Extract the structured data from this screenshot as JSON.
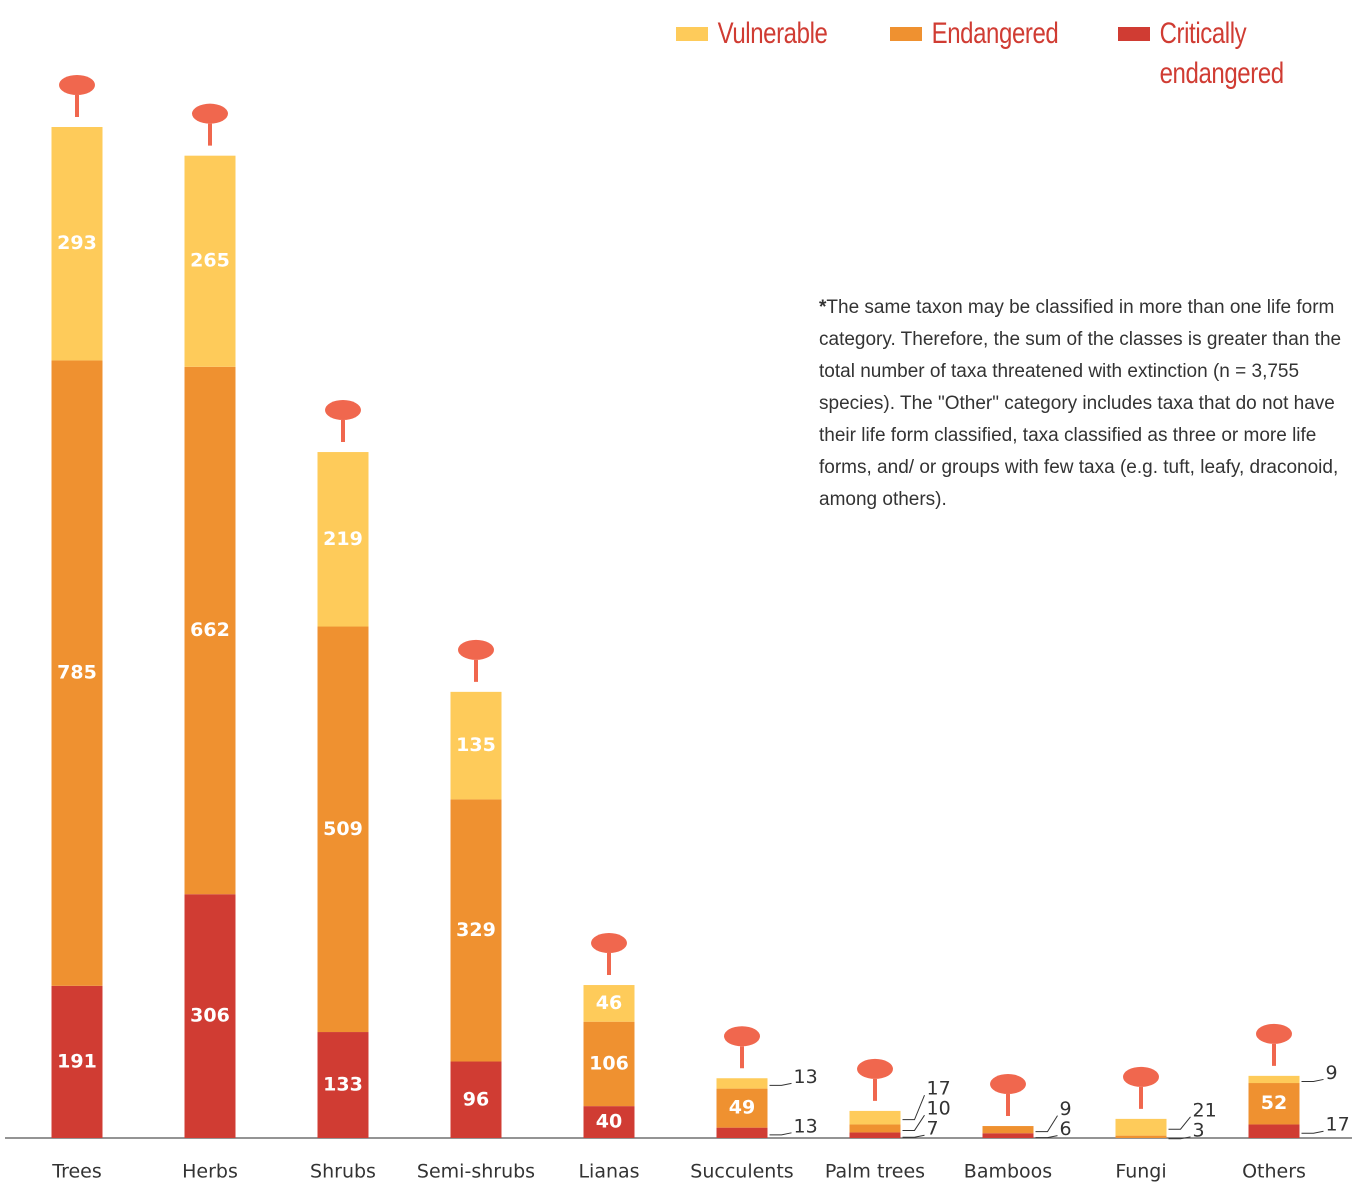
{
  "chart_data": {
    "type": "stacked_bar",
    "categories": [
      "Trees",
      "Herbs",
      "Shrubs",
      "Semi-shrubs",
      "Lianas",
      "Succulents",
      "Palm trees",
      "Bamboos",
      "Fungi",
      "Others"
    ],
    "series": [
      {
        "name": "Critically endangered",
        "color": "#d03c33",
        "values": [
          191,
          306,
          133,
          96,
          40,
          13,
          7,
          6,
          0,
          17
        ]
      },
      {
        "name": "Endangered",
        "color": "#ef9130",
        "values": [
          785,
          662,
          509,
          329,
          106,
          49,
          10,
          9,
          3,
          52
        ]
      },
      {
        "name": "Vulnerable",
        "color": "#fecb5a",
        "values": [
          293,
          265,
          219,
          135,
          46,
          13,
          17,
          0,
          21,
          9
        ]
      }
    ],
    "note": {
      "mark": "*",
      "text": "The same taxon may be classified in more than one life form category. Therefore, the sum of the classes is greater than the total number of taxa threatened with extinction (n = 3,755 species). The \"Other\" category includes taxa that do not have their life form classified, taxa classified as three or more life forms, and/ or groups with few taxa (e.g. tuft, leafy, draconoid, among others)."
    },
    "legend": "top-right"
  }
}
